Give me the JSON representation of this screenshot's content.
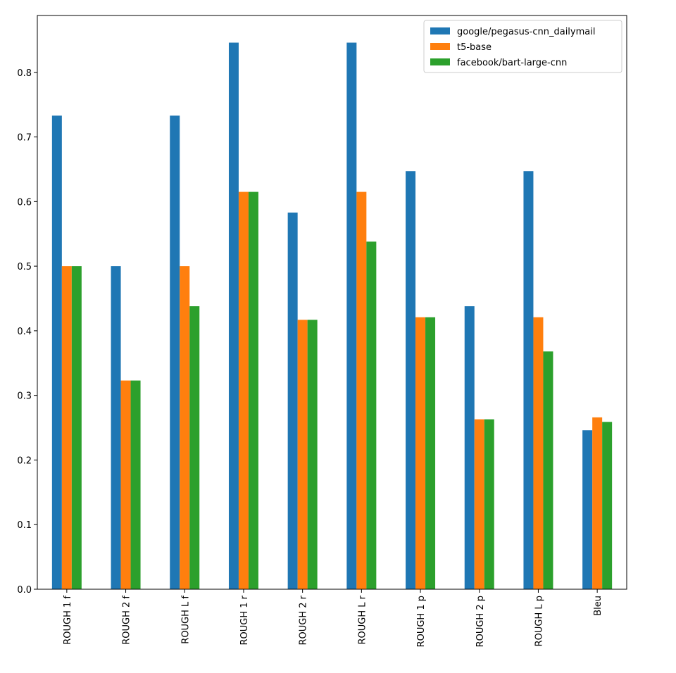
{
  "chart_data": {
    "type": "bar",
    "title": "",
    "xlabel": "",
    "ylabel": "",
    "categories": [
      "ROUGH 1 f",
      "ROUGH 2 f",
      "ROUGH L f",
      "ROUGH 1 r",
      "ROUGH 2 r",
      "ROUGH L r",
      "ROUGH 1 p",
      "ROUGH 2 p",
      "ROUGH L p",
      "Bleu"
    ],
    "series": [
      {
        "name": "google/pegasus-cnn_dailymail",
        "color": "#1f77b4",
        "values": [
          0.733,
          0.5,
          0.733,
          0.846,
          0.583,
          0.846,
          0.647,
          0.438,
          0.647,
          0.246
        ]
      },
      {
        "name": "t5-base",
        "color": "#ff7f0e",
        "values": [
          0.5,
          0.323,
          0.5,
          0.615,
          0.417,
          0.615,
          0.421,
          0.263,
          0.421,
          0.266
        ]
      },
      {
        "name": "facebook/bart-large-cnn",
        "color": "#2ca02c",
        "values": [
          0.5,
          0.323,
          0.438,
          0.615,
          0.417,
          0.538,
          0.421,
          0.263,
          0.368,
          0.259
        ]
      }
    ],
    "ylim": [
      0,
      0.888
    ],
    "yticks": [
      0.0,
      0.1,
      0.2,
      0.3,
      0.4,
      0.5,
      0.6,
      0.7,
      0.8
    ],
    "ytick_labels": [
      "0.0",
      "0.1",
      "0.2",
      "0.3",
      "0.4",
      "0.5",
      "0.6",
      "0.7",
      "0.8"
    ],
    "legend_position": "top-right",
    "grid": false
  }
}
